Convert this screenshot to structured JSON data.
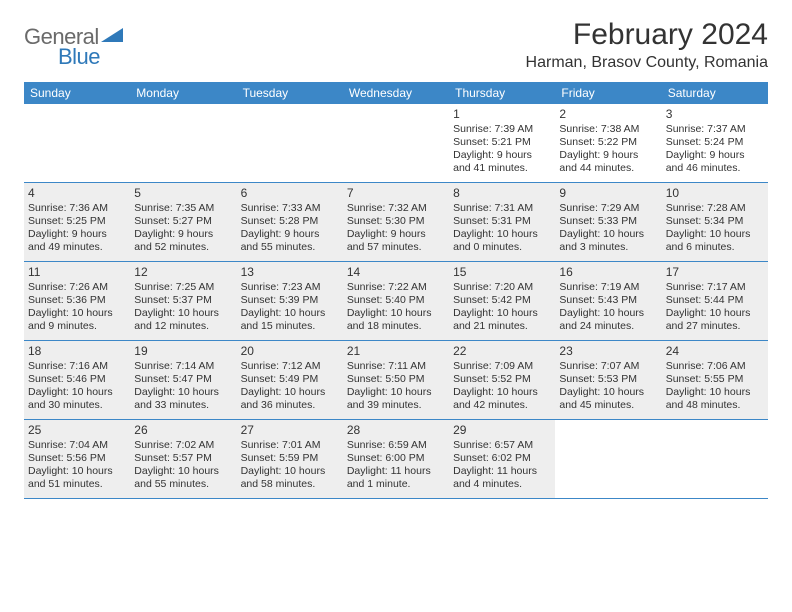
{
  "brand": {
    "text_general": "General",
    "text_blue": "Blue",
    "triangle_color": "#2f79b9"
  },
  "header": {
    "month_title": "February 2024",
    "location": "Harman, Brasov County, Romania"
  },
  "style": {
    "header_bg": "#3c87c7",
    "header_text": "#ffffff",
    "shaded_bg": "#eeeeee",
    "border_color": "#3c87c7",
    "body_text": "#333333"
  },
  "day_labels": [
    "Sunday",
    "Monday",
    "Tuesday",
    "Wednesday",
    "Thursday",
    "Friday",
    "Saturday"
  ],
  "weeks": [
    [
      {
        "day": "",
        "sunrise": "",
        "sunset": "",
        "daylight": ""
      },
      {
        "day": "",
        "sunrise": "",
        "sunset": "",
        "daylight": ""
      },
      {
        "day": "",
        "sunrise": "",
        "sunset": "",
        "daylight": ""
      },
      {
        "day": "",
        "sunrise": "",
        "sunset": "",
        "daylight": ""
      },
      {
        "day": "1",
        "sunrise": "Sunrise: 7:39 AM",
        "sunset": "Sunset: 5:21 PM",
        "daylight": "Daylight: 9 hours and 41 minutes."
      },
      {
        "day": "2",
        "sunrise": "Sunrise: 7:38 AM",
        "sunset": "Sunset: 5:22 PM",
        "daylight": "Daylight: 9 hours and 44 minutes."
      },
      {
        "day": "3",
        "sunrise": "Sunrise: 7:37 AM",
        "sunset": "Sunset: 5:24 PM",
        "daylight": "Daylight: 9 hours and 46 minutes."
      }
    ],
    [
      {
        "day": "4",
        "sunrise": "Sunrise: 7:36 AM",
        "sunset": "Sunset: 5:25 PM",
        "daylight": "Daylight: 9 hours and 49 minutes.",
        "shaded": true
      },
      {
        "day": "5",
        "sunrise": "Sunrise: 7:35 AM",
        "sunset": "Sunset: 5:27 PM",
        "daylight": "Daylight: 9 hours and 52 minutes.",
        "shaded": true
      },
      {
        "day": "6",
        "sunrise": "Sunrise: 7:33 AM",
        "sunset": "Sunset: 5:28 PM",
        "daylight": "Daylight: 9 hours and 55 minutes.",
        "shaded": true
      },
      {
        "day": "7",
        "sunrise": "Sunrise: 7:32 AM",
        "sunset": "Sunset: 5:30 PM",
        "daylight": "Daylight: 9 hours and 57 minutes.",
        "shaded": true
      },
      {
        "day": "8",
        "sunrise": "Sunrise: 7:31 AM",
        "sunset": "Sunset: 5:31 PM",
        "daylight": "Daylight: 10 hours and 0 minutes.",
        "shaded": true
      },
      {
        "day": "9",
        "sunrise": "Sunrise: 7:29 AM",
        "sunset": "Sunset: 5:33 PM",
        "daylight": "Daylight: 10 hours and 3 minutes.",
        "shaded": true
      },
      {
        "day": "10",
        "sunrise": "Sunrise: 7:28 AM",
        "sunset": "Sunset: 5:34 PM",
        "daylight": "Daylight: 10 hours and 6 minutes.",
        "shaded": true
      }
    ],
    [
      {
        "day": "11",
        "sunrise": "Sunrise: 7:26 AM",
        "sunset": "Sunset: 5:36 PM",
        "daylight": "Daylight: 10 hours and 9 minutes.",
        "shaded": true
      },
      {
        "day": "12",
        "sunrise": "Sunrise: 7:25 AM",
        "sunset": "Sunset: 5:37 PM",
        "daylight": "Daylight: 10 hours and 12 minutes.",
        "shaded": true
      },
      {
        "day": "13",
        "sunrise": "Sunrise: 7:23 AM",
        "sunset": "Sunset: 5:39 PM",
        "daylight": "Daylight: 10 hours and 15 minutes.",
        "shaded": true
      },
      {
        "day": "14",
        "sunrise": "Sunrise: 7:22 AM",
        "sunset": "Sunset: 5:40 PM",
        "daylight": "Daylight: 10 hours and 18 minutes.",
        "shaded": true
      },
      {
        "day": "15",
        "sunrise": "Sunrise: 7:20 AM",
        "sunset": "Sunset: 5:42 PM",
        "daylight": "Daylight: 10 hours and 21 minutes.",
        "shaded": true
      },
      {
        "day": "16",
        "sunrise": "Sunrise: 7:19 AM",
        "sunset": "Sunset: 5:43 PM",
        "daylight": "Daylight: 10 hours and 24 minutes.",
        "shaded": true
      },
      {
        "day": "17",
        "sunrise": "Sunrise: 7:17 AM",
        "sunset": "Sunset: 5:44 PM",
        "daylight": "Daylight: 10 hours and 27 minutes.",
        "shaded": true
      }
    ],
    [
      {
        "day": "18",
        "sunrise": "Sunrise: 7:16 AM",
        "sunset": "Sunset: 5:46 PM",
        "daylight": "Daylight: 10 hours and 30 minutes.",
        "shaded": true
      },
      {
        "day": "19",
        "sunrise": "Sunrise: 7:14 AM",
        "sunset": "Sunset: 5:47 PM",
        "daylight": "Daylight: 10 hours and 33 minutes.",
        "shaded": true
      },
      {
        "day": "20",
        "sunrise": "Sunrise: 7:12 AM",
        "sunset": "Sunset: 5:49 PM",
        "daylight": "Daylight: 10 hours and 36 minutes.",
        "shaded": true
      },
      {
        "day": "21",
        "sunrise": "Sunrise: 7:11 AM",
        "sunset": "Sunset: 5:50 PM",
        "daylight": "Daylight: 10 hours and 39 minutes.",
        "shaded": true
      },
      {
        "day": "22",
        "sunrise": "Sunrise: 7:09 AM",
        "sunset": "Sunset: 5:52 PM",
        "daylight": "Daylight: 10 hours and 42 minutes.",
        "shaded": true
      },
      {
        "day": "23",
        "sunrise": "Sunrise: 7:07 AM",
        "sunset": "Sunset: 5:53 PM",
        "daylight": "Daylight: 10 hours and 45 minutes.",
        "shaded": true
      },
      {
        "day": "24",
        "sunrise": "Sunrise: 7:06 AM",
        "sunset": "Sunset: 5:55 PM",
        "daylight": "Daylight: 10 hours and 48 minutes.",
        "shaded": true
      }
    ],
    [
      {
        "day": "25",
        "sunrise": "Sunrise: 7:04 AM",
        "sunset": "Sunset: 5:56 PM",
        "daylight": "Daylight: 10 hours and 51 minutes.",
        "shaded": true
      },
      {
        "day": "26",
        "sunrise": "Sunrise: 7:02 AM",
        "sunset": "Sunset: 5:57 PM",
        "daylight": "Daylight: 10 hours and 55 minutes.",
        "shaded": true
      },
      {
        "day": "27",
        "sunrise": "Sunrise: 7:01 AM",
        "sunset": "Sunset: 5:59 PM",
        "daylight": "Daylight: 10 hours and 58 minutes.",
        "shaded": true
      },
      {
        "day": "28",
        "sunrise": "Sunrise: 6:59 AM",
        "sunset": "Sunset: 6:00 PM",
        "daylight": "Daylight: 11 hours and 1 minute.",
        "shaded": true
      },
      {
        "day": "29",
        "sunrise": "Sunrise: 6:57 AM",
        "sunset": "Sunset: 6:02 PM",
        "daylight": "Daylight: 11 hours and 4 minutes.",
        "shaded": true
      },
      {
        "day": "",
        "sunrise": "",
        "sunset": "",
        "daylight": ""
      },
      {
        "day": "",
        "sunrise": "",
        "sunset": "",
        "daylight": ""
      }
    ]
  ]
}
